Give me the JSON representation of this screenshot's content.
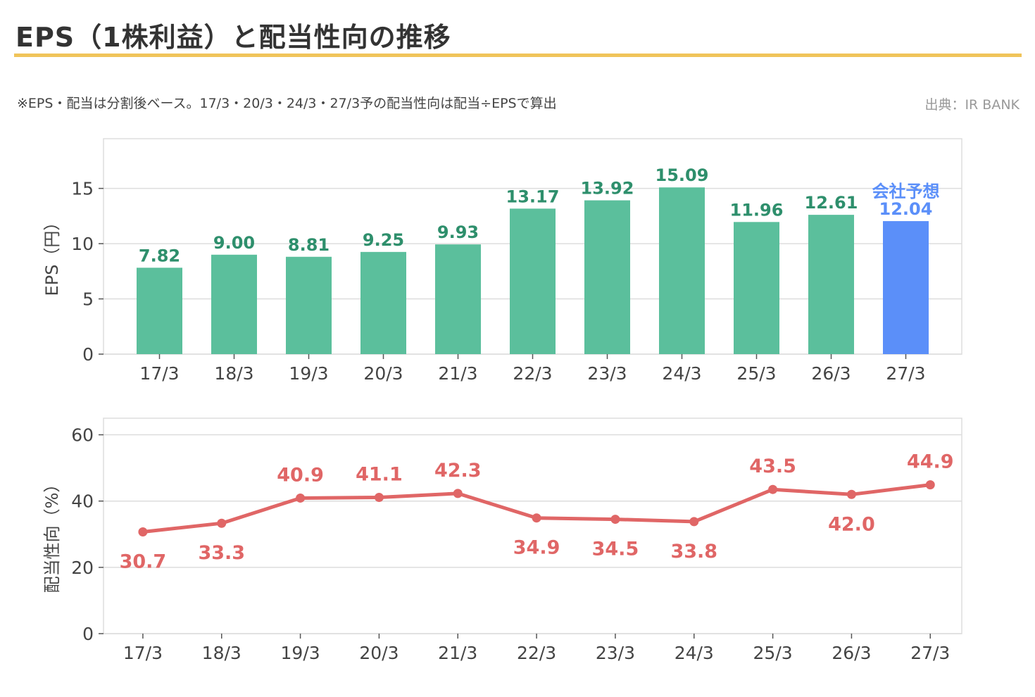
{
  "header": {
    "title": "EPS（1株利益）と配当性向の推移",
    "note": "※EPS・配当は分割後ベース。17/3・20/3・24/3・27/3予の配当性向は配当÷EPSで算出",
    "source": "出典：IR BANK"
  },
  "colors": {
    "accent_rule": "#f0c45a",
    "eps_bar": "#5bbf9c",
    "eps_label": "#2e8f6c",
    "forecast_bar": "#5b8ff9",
    "payout_line": "#e06666",
    "grid": "#dddddd"
  },
  "chart_data": [
    {
      "type": "bar",
      "ylabel": "EPS（円）",
      "categories": [
        "17/3",
        "18/3",
        "19/3",
        "20/3",
        "21/3",
        "22/3",
        "23/3",
        "24/3",
        "25/3",
        "26/3",
        "27/3"
      ],
      "values": [
        7.82,
        9.0,
        8.81,
        9.25,
        9.93,
        13.17,
        13.92,
        15.09,
        11.96,
        12.61,
        12.04
      ],
      "labels": [
        "7.82",
        "9.00",
        "8.81",
        "9.25",
        "9.93",
        "13.17",
        "13.92",
        "15.09",
        "11.96",
        "12.61",
        "12.04"
      ],
      "ylim": [
        0,
        19.5
      ],
      "yticks": [
        0,
        5,
        10,
        15
      ],
      "forecast_index": 10,
      "forecast_label": "会社予想",
      "grid": true
    },
    {
      "type": "line",
      "ylabel": "配当性向（%）",
      "categories": [
        "17/3",
        "18/3",
        "19/3",
        "20/3",
        "21/3",
        "22/3",
        "23/3",
        "24/3",
        "25/3",
        "26/3",
        "27/3"
      ],
      "values": [
        30.7,
        33.3,
        40.9,
        41.1,
        42.3,
        34.9,
        34.5,
        33.8,
        43.5,
        42.0,
        44.9
      ],
      "labels": [
        "30.7",
        "33.3",
        "40.9",
        "41.1",
        "42.3",
        "34.9",
        "34.5",
        "33.8",
        "43.5",
        "42.0",
        "44.9"
      ],
      "label_positions": [
        "below",
        "below",
        "above",
        "above",
        "above",
        "below",
        "below",
        "below",
        "above",
        "below",
        "above"
      ],
      "ylim": [
        0,
        65
      ],
      "yticks": [
        0,
        20,
        40,
        60
      ],
      "grid": true
    }
  ]
}
